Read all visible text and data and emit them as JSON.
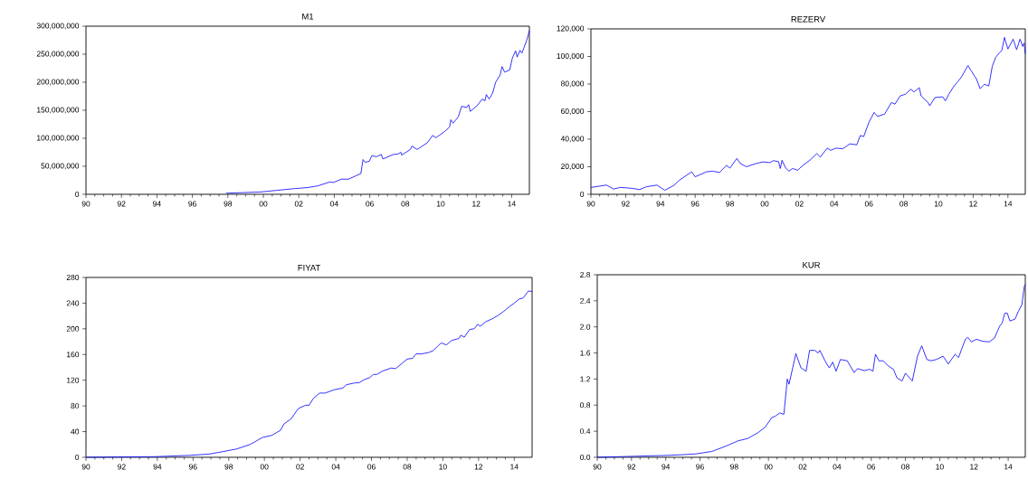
{
  "chart_data": [
    {
      "type": "line",
      "title": "M1",
      "x": [
        1997.9,
        1999.8,
        2000.75,
        2001.7,
        2002.5,
        2003.07,
        2003.75,
        2003.94,
        2004.4,
        2004.8,
        2005.5,
        2005.62,
        2005.74,
        2005.97,
        2006.12,
        2006.36,
        2006.65,
        2006.74,
        2007.32,
        2007.6,
        2007.75,
        2007.8,
        2008.29,
        2008.38,
        2008.67,
        2009.25,
        2009.54,
        2009.73,
        2010.22,
        2010.5,
        2010.57,
        2010.7,
        2010.99,
        2011.18,
        2011.47,
        2011.57,
        2011.67,
        2012.05,
        2012.34,
        2012.5,
        2012.57,
        2012.73,
        2012.92,
        2013.1,
        2013.35,
        2013.46,
        2013.6,
        2013.89,
        2014.04,
        2014.22,
        2014.31,
        2014.47,
        2014.58,
        2014.85,
        2015
      ],
      "series": [
        {
          "color": "#0000ff",
          "values": [
            2000000,
            4000000,
            7000000,
            10000000,
            12000000,
            15000000,
            22000000,
            21000000,
            27000000,
            27000000,
            37000000,
            62000000,
            57000000,
            59000000,
            69000000,
            67000000,
            71000000,
            63000000,
            71000000,
            72000000,
            75000000,
            70000000,
            80000000,
            86000000,
            80000000,
            92000000,
            105000000,
            101000000,
            112000000,
            120000000,
            133000000,
            127000000,
            138000000,
            157000000,
            155000000,
            160000000,
            148000000,
            158000000,
            170000000,
            167000000,
            178000000,
            170000000,
            180000000,
            200000000,
            213000000,
            228000000,
            218000000,
            222000000,
            243000000,
            256000000,
            245000000,
            257000000,
            252000000,
            275000000,
            292000000
          ]
        }
      ],
      "xlim": [
        1990,
        2015
      ],
      "ylim": [
        0,
        300000000
      ],
      "xticks": [
        {
          "value": 1990,
          "label": "90"
        },
        {
          "value": 1992,
          "label": "92"
        },
        {
          "value": 1994,
          "label": "94"
        },
        {
          "value": 1996,
          "label": "96"
        },
        {
          "value": 1998,
          "label": "98"
        },
        {
          "value": 2000,
          "label": "00"
        },
        {
          "value": 2002,
          "label": "02"
        },
        {
          "value": 2004,
          "label": "04"
        },
        {
          "value": 2006,
          "label": "06"
        },
        {
          "value": 2008,
          "label": "08"
        },
        {
          "value": 2010,
          "label": "10"
        },
        {
          "value": 2012,
          "label": "12"
        },
        {
          "value": 2014,
          "label": "14"
        }
      ],
      "yticks": [
        {
          "value": 0,
          "label": "0"
        },
        {
          "value": 50000000,
          "label": "50,000,000"
        },
        {
          "value": 100000000,
          "label": "100,000,000"
        },
        {
          "value": 150000000,
          "label": "150,000,000"
        },
        {
          "value": 200000000,
          "label": "200,000,000"
        },
        {
          "value": 250000000,
          "label": "250,000,000"
        },
        {
          "value": 300000000,
          "label": "300,000,000"
        }
      ]
    },
    {
      "type": "line",
      "title": "REZERV",
      "x": [
        1990,
        1990.9,
        1991.3,
        1991.7,
        1992.4,
        1992.8,
        1993.2,
        1993.8,
        1994.25,
        1994.8,
        1995.1,
        1995.8,
        1996.0,
        1996.65,
        1997.0,
        1997.4,
        1997.8,
        1998.0,
        1998.4,
        1998.6,
        1998.95,
        1999.5,
        1999.9,
        2000.3,
        2000.5,
        2000.8,
        2000.9,
        2001.0,
        2001.2,
        2001.4,
        2001.6,
        2001.9,
        2002.2,
        2002.6,
        2003.0,
        2003.2,
        2003.6,
        2003.8,
        2004.1,
        2004.5,
        2004.9,
        2005.3,
        2005.5,
        2005.7,
        2006.0,
        2006.3,
        2006.5,
        2006.9,
        2007.3,
        2007.5,
        2007.8,
        2008.1,
        2008.4,
        2008.6,
        2008.9,
        2009.0,
        2009.4,
        2009.5,
        2009.8,
        2010.25,
        2010.4,
        2010.6,
        2010.9,
        2011.3,
        2011.7,
        2011.9,
        2012.2,
        2012.4,
        2012.65,
        2012.9,
        2013.1,
        2013.3,
        2013.5,
        2013.65,
        2013.8,
        2014.0,
        2014.3,
        2014.5,
        2014.7,
        2014.85,
        2014.93,
        2015
      ],
      "series": [
        {
          "color": "#0000ff",
          "values": [
            5000,
            6700,
            3800,
            5000,
            4300,
            3400,
            5500,
            6700,
            2900,
            6700,
            10300,
            16300,
            12700,
            16300,
            16800,
            15800,
            21000,
            19000,
            26000,
            22300,
            20000,
            22300,
            23500,
            23000,
            24400,
            23700,
            18700,
            24700,
            19200,
            16800,
            18700,
            17500,
            21000,
            24700,
            29500,
            27000,
            33500,
            31900,
            33500,
            33000,
            36600,
            35900,
            42600,
            41900,
            52200,
            59400,
            56500,
            58200,
            66600,
            65400,
            71400,
            72600,
            76200,
            74300,
            77400,
            71400,
            66600,
            64200,
            70200,
            70700,
            67800,
            72600,
            78600,
            84600,
            93400,
            89400,
            83400,
            76600,
            79800,
            78600,
            92900,
            99400,
            102600,
            104400,
            113800,
            105400,
            112600,
            104900,
            112600,
            107300,
            109700,
            102000
          ]
        }
      ],
      "xlim": [
        1990,
        2015
      ],
      "ylim": [
        0,
        120000
      ],
      "xticks": [
        {
          "value": 1990,
          "label": "90"
        },
        {
          "value": 1992,
          "label": "92"
        },
        {
          "value": 1994,
          "label": "94"
        },
        {
          "value": 1996,
          "label": "96"
        },
        {
          "value": 1998,
          "label": "98"
        },
        {
          "value": 2000,
          "label": "00"
        },
        {
          "value": 2002,
          "label": "02"
        },
        {
          "value": 2004,
          "label": "04"
        },
        {
          "value": 2006,
          "label": "06"
        },
        {
          "value": 2008,
          "label": "08"
        },
        {
          "value": 2010,
          "label": "10"
        },
        {
          "value": 2012,
          "label": "12"
        },
        {
          "value": 2014,
          "label": "14"
        }
      ],
      "yticks": [
        {
          "value": 0,
          "label": "0"
        },
        {
          "value": 20000,
          "label": "20,000"
        },
        {
          "value": 40000,
          "label": "40,000"
        },
        {
          "value": 60000,
          "label": "60,000"
        },
        {
          "value": 80000,
          "label": "80,000"
        },
        {
          "value": 100000,
          "label": "100,000"
        },
        {
          "value": 120000,
          "label": "120,000"
        }
      ]
    },
    {
      "type": "line",
      "title": "FIYAT",
      "x": [
        1990,
        1993.9,
        1995.8,
        1996.9,
        1997.7,
        1998.45,
        1999.2,
        1999.9,
        2000.4,
        2000.9,
        2001.1,
        2001.5,
        2001.9,
        2002.3,
        2002.5,
        2002.75,
        2003.1,
        2003.4,
        2003.9,
        2004.4,
        2004.6,
        2005.1,
        2005.3,
        2005.6,
        2005.9,
        2006.1,
        2006.3,
        2006.6,
        2007.1,
        2007.35,
        2007.7,
        2008.0,
        2008.3,
        2008.5,
        2008.8,
        2009.2,
        2009.45,
        2009.75,
        2009.9,
        2010.2,
        2010.5,
        2010.9,
        2011.0,
        2011.2,
        2011.5,
        2011.75,
        2011.95,
        2012.1,
        2012.4,
        2012.8,
        2013.1,
        2013.4,
        2013.75,
        2014.0,
        2014.25,
        2014.5,
        2014.8,
        2015
      ],
      "series": [
        {
          "color": "#0000ff",
          "values": [
            0,
            1,
            3,
            5,
            9,
            13,
            20,
            31,
            34,
            42,
            52,
            60,
            76,
            81,
            81,
            92,
            100,
            100,
            105,
            108,
            113,
            116,
            116,
            121,
            124,
            129,
            129,
            134,
            139,
            138,
            146,
            153,
            154,
            161,
            161,
            163,
            166,
            174,
            178,
            175,
            182,
            185,
            190,
            187,
            199,
            200,
            207,
            204,
            211,
            216,
            221,
            227,
            235,
            240,
            246,
            248,
            259,
            258
          ]
        }
      ],
      "xlim": [
        1990,
        2015
      ],
      "ylim": [
        0,
        280
      ],
      "xticks": [
        {
          "value": 1990,
          "label": "90"
        },
        {
          "value": 1992,
          "label": "92"
        },
        {
          "value": 1994,
          "label": "94"
        },
        {
          "value": 1996,
          "label": "96"
        },
        {
          "value": 1998,
          "label": "98"
        },
        {
          "value": 2000,
          "label": "00"
        },
        {
          "value": 2002,
          "label": "02"
        },
        {
          "value": 2004,
          "label": "04"
        },
        {
          "value": 2006,
          "label": "06"
        },
        {
          "value": 2008,
          "label": "08"
        },
        {
          "value": 2010,
          "label": "10"
        },
        {
          "value": 2012,
          "label": "12"
        },
        {
          "value": 2014,
          "label": "14"
        }
      ],
      "yticks": [
        0,
        40,
        80,
        120,
        160,
        200,
        240,
        280
      ]
    },
    {
      "type": "line",
      "title": "KUR",
      "x": [
        1990,
        1994.2,
        1995.7,
        1996.7,
        1997.5,
        1998.2,
        1998.8,
        1999.4,
        1999.8,
        2000.2,
        2000.4,
        2000.65,
        2000.9,
        2001.1,
        2001.2,
        2001.6,
        2001.9,
        2002.2,
        2002.4,
        2002.7,
        2002.9,
        2003.0,
        2003.3,
        2003.55,
        2003.75,
        2003.95,
        2004.2,
        2004.6,
        2005.0,
        2005.2,
        2005.6,
        2005.9,
        2006.1,
        2006.25,
        2006.45,
        2006.7,
        2007.0,
        2007.3,
        2007.5,
        2007.8,
        2008.0,
        2008.4,
        2008.7,
        2008.95,
        2009.25,
        2009.5,
        2009.8,
        2010.2,
        2010.5,
        2010.9,
        2011.1,
        2011.5,
        2011.65,
        2011.85,
        2012.15,
        2012.5,
        2012.9,
        2013.2,
        2013.5,
        2013.65,
        2013.8,
        2013.95,
        2014.1,
        2014.4,
        2014.6,
        2014.8,
        2014.95,
        2015
      ],
      "series": [
        {
          "color": "#0000ff",
          "values": [
            0,
            0.03,
            0.05,
            0.09,
            0.17,
            0.25,
            0.29,
            0.38,
            0.46,
            0.61,
            0.63,
            0.68,
            0.66,
            1.2,
            1.12,
            1.59,
            1.37,
            1.32,
            1.64,
            1.64,
            1.6,
            1.64,
            1.48,
            1.37,
            1.46,
            1.32,
            1.5,
            1.48,
            1.3,
            1.36,
            1.33,
            1.35,
            1.32,
            1.58,
            1.48,
            1.48,
            1.4,
            1.35,
            1.22,
            1.17,
            1.29,
            1.17,
            1.55,
            1.71,
            1.5,
            1.48,
            1.5,
            1.55,
            1.43,
            1.58,
            1.53,
            1.81,
            1.84,
            1.77,
            1.81,
            1.78,
            1.77,
            1.83,
            2.01,
            2.06,
            2.21,
            2.21,
            2.09,
            2.12,
            2.24,
            2.34,
            2.63,
            2.65
          ]
        }
      ],
      "xlim": [
        1990,
        2015
      ],
      "ylim": [
        0,
        2.8
      ],
      "xticks": [
        {
          "value": 1990,
          "label": "90"
        },
        {
          "value": 1992,
          "label": "92"
        },
        {
          "value": 1994,
          "label": "94"
        },
        {
          "value": 1996,
          "label": "96"
        },
        {
          "value": 1998,
          "label": "98"
        },
        {
          "value": 2000,
          "label": "00"
        },
        {
          "value": 2002,
          "label": "02"
        },
        {
          "value": 2004,
          "label": "04"
        },
        {
          "value": 2006,
          "label": "06"
        },
        {
          "value": 2008,
          "label": "08"
        },
        {
          "value": 2010,
          "label": "10"
        },
        {
          "value": 2012,
          "label": "12"
        },
        {
          "value": 2014,
          "label": "14"
        }
      ],
      "yticks": [
        {
          "value": 0,
          "label": "0.0"
        },
        {
          "value": 0.4,
          "label": "0.4"
        },
        {
          "value": 0.8,
          "label": "0.8"
        },
        {
          "value": 1.2,
          "label": "1.2"
        },
        {
          "value": 1.6,
          "label": "1.6"
        },
        {
          "value": 2.0,
          "label": "2.0"
        },
        {
          "value": 2.4,
          "label": "2.4"
        },
        {
          "value": 2.8,
          "label": "2.8"
        }
      ]
    }
  ]
}
